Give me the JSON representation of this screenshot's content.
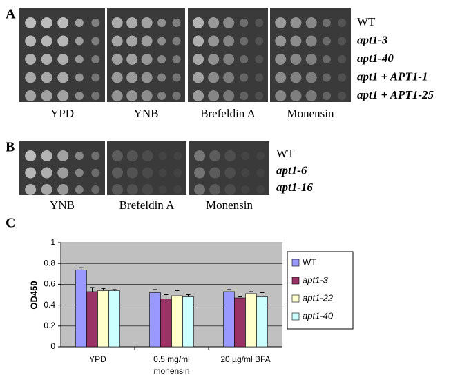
{
  "figure": {
    "panel_a": {
      "label": "A",
      "strains": [
        "WT",
        "apt1-3",
        "apt1-40",
        "apt1 + APT1-1",
        "apt1 + APT1-25"
      ],
      "media": [
        "YPD",
        "YNB",
        "Brefeldin A",
        "Monensin"
      ]
    },
    "panel_b": {
      "label": "B",
      "strains": [
        "WT",
        "apt1-6",
        "apt1-16"
      ],
      "media": [
        "YNB",
        "Brefeldin A",
        "Monensin"
      ]
    },
    "panel_c_label": "C"
  },
  "chart_data": {
    "type": "bar",
    "y_label": "OD450",
    "categories": [
      "YPD",
      "0.5 mg/ml monensin",
      "20 µg/ml BFA"
    ],
    "series": [
      {
        "name": "WT",
        "color": "#9999ff",
        "values": [
          0.74,
          0.52,
          0.53
        ],
        "errors": [
          0.02,
          0.03,
          0.02
        ]
      },
      {
        "name": "apt1-3",
        "color": "#993366",
        "values": [
          0.53,
          0.46,
          0.47
        ],
        "errors": [
          0.04,
          0.04,
          0.01
        ]
      },
      {
        "name": "apt1-22",
        "color": "#ffffcc",
        "values": [
          0.54,
          0.49,
          0.51
        ],
        "errors": [
          0.02,
          0.05,
          0.02
        ]
      },
      {
        "name": "apt1-40",
        "color": "#ccffff",
        "values": [
          0.54,
          0.48,
          0.48
        ],
        "errors": [
          0.01,
          0.02,
          0.04
        ]
      }
    ],
    "ylim": [
      0,
      1
    ],
    "yticks": [
      0,
      0.2,
      0.4,
      0.6,
      0.8,
      1
    ],
    "grid": true,
    "legend": "right"
  }
}
